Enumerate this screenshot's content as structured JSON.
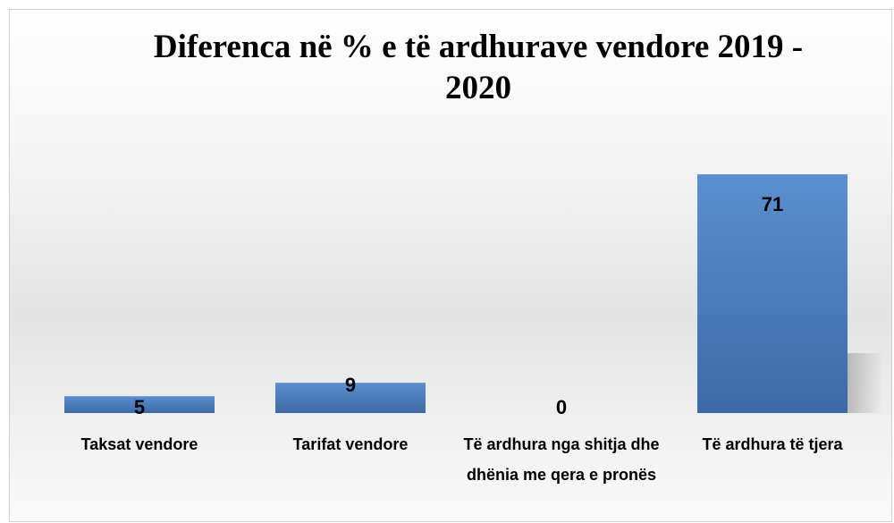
{
  "chart_data": {
    "type": "bar",
    "title": "Diferenca në % e të ardhurave vendore 2019 - 2020",
    "categories": [
      "Taksat vendore",
      "Tarifat vendore",
      "Të ardhura nga shitja dhe dhënia me qera e pronës",
      "Të ardhura të tjera"
    ],
    "values": [
      5,
      9,
      0,
      71
    ],
    "color": "#4a7bb7"
  }
}
